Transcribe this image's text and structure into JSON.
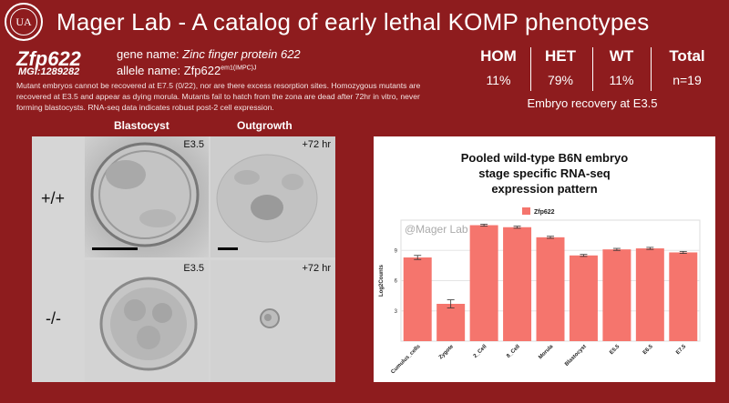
{
  "header": {
    "title": "Mager Lab - A catalog of early lethal KOMP phenotypes",
    "logo_text": "UA"
  },
  "gene": {
    "symbol": "Zfp622",
    "mgi": "MGI:1289282",
    "gene_name_label": "gene name:",
    "gene_name_value": "Zinc finger protein 622",
    "allele_label": "allele name:",
    "allele_base": "Zfp622",
    "allele_sup": "em1(IMPC)J"
  },
  "description": "Mutant embryos cannot be recovered at E7.5 (0/22), nor are there excess resorption sites. Homozygous mutants are recovered at E3.5 and appear as dying morula. Mutants fail to hatch from the zona are dead after 72hr in vitro, never forming blastocysts. RNA-seq data indicates robust post-2 cell expression.",
  "stats": {
    "columns": [
      {
        "head": "HOM",
        "value": "11%"
      },
      {
        "head": "HET",
        "value": "79%"
      },
      {
        "head": "WT",
        "value": "11%"
      },
      {
        "head": "Total",
        "value": "n=19"
      }
    ],
    "footer": "Embryo recovery at E3.5"
  },
  "images": {
    "col_blastocyst": "Blastocyst",
    "col_outgrowth": "Outgrowth",
    "row_wt": "+/+",
    "row_mut": "-/-",
    "labels": {
      "wt_blast": "E3.5",
      "wt_out": "+72 hr",
      "mut_blast": "E3.5",
      "mut_out": "+72 hr"
    }
  },
  "chart_data": {
    "type": "bar",
    "title_lines": [
      "Pooled wild-type B6N embryo",
      "stage specific RNA-seq",
      "expression pattern"
    ],
    "watermark": "@Mager Lab",
    "legend": "Zfp622",
    "ylabel": "Log2Counts",
    "xlabel": "",
    "categories": [
      "Cumulus_cells",
      "Zygote",
      "2_Cell",
      "8_Cell",
      "Morula",
      "Blastocyst",
      "E5.5",
      "E6.5",
      "E7.5"
    ],
    "values": [
      8.3,
      3.7,
      11.5,
      11.3,
      10.3,
      8.5,
      9.1,
      9.2,
      8.8
    ],
    "errors": [
      0.2,
      0.4,
      0.1,
      0.1,
      0.1,
      0.1,
      0.1,
      0.1,
      0.1
    ],
    "yticks": [
      3,
      6,
      9
    ],
    "ylim": [
      0,
      12
    ],
    "bar_color": "#f5756d",
    "legend_placement": "top-right",
    "grid": true
  }
}
